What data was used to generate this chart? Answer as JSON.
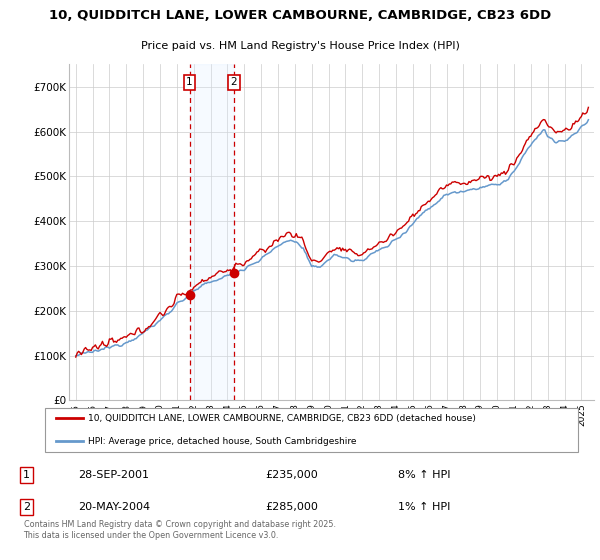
{
  "title_line1": "10, QUIDDITCH LANE, LOWER CAMBOURNE, CAMBRIDGE, CB23 6DD",
  "title_line2": "Price paid vs. HM Land Registry's House Price Index (HPI)",
  "background_color": "#ffffff",
  "plot_bg_color": "#ffffff",
  "grid_color": "#cccccc",
  "hpi_color": "#6699cc",
  "price_color": "#cc0000",
  "span_color": "#ddeeff",
  "t1_year_val": 2001.75,
  "t2_year_val": 2004.37,
  "t1_price": 235000,
  "t2_price": 285000,
  "legend_label1": "10, QUIDDITCH LANE, LOWER CAMBOURNE, CAMBRIDGE, CB23 6DD (detached house)",
  "legend_label2": "HPI: Average price, detached house, South Cambridgeshire",
  "footer": "Contains HM Land Registry data © Crown copyright and database right 2025.\nThis data is licensed under the Open Government Licence v3.0.",
  "ylim": [
    0,
    750000
  ],
  "yticks": [
    0,
    100000,
    200000,
    300000,
    400000,
    500000,
    600000,
    700000
  ],
  "ytick_labels": [
    "£0",
    "£100K",
    "£200K",
    "£300K",
    "£400K",
    "£500K",
    "£600K",
    "£700K"
  ],
  "xstart": 1995,
  "xend": 2025,
  "table_row1": [
    "1",
    "28-SEP-2001",
    "£235,000",
    "8% ↑ HPI"
  ],
  "table_row2": [
    "2",
    "20-MAY-2004",
    "£285,000",
    "1% ↑ HPI"
  ]
}
